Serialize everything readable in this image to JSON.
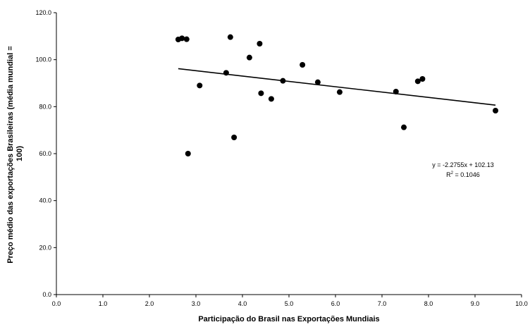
{
  "chart_data": {
    "type": "scatter",
    "title": "",
    "xlabel": "Participação do Brasil nas Exportações Mundiais",
    "ylabel_line1": "Preço médio das exportações Brasileiras (média mundial =",
    "ylabel_line2": "100)",
    "xlim": [
      0,
      10
    ],
    "ylim": [
      0,
      120
    ],
    "x_ticks": [
      "0.0",
      "1.0",
      "2.0",
      "3.0",
      "4.0",
      "5.0",
      "6.0",
      "7.0",
      "8.0",
      "9.0",
      "10.0"
    ],
    "y_ticks": [
      "0.0",
      "20.0",
      "40.0",
      "60.0",
      "80.0",
      "100.0",
      "120.0"
    ],
    "grid": false,
    "legend": "none",
    "marker_color": "#000000",
    "points": [
      {
        "x": 2.62,
        "y": 108.6
      },
      {
        "x": 2.7,
        "y": 109.1
      },
      {
        "x": 2.8,
        "y": 108.7
      },
      {
        "x": 2.83,
        "y": 60.0
      },
      {
        "x": 3.08,
        "y": 89.0
      },
      {
        "x": 3.65,
        "y": 94.4
      },
      {
        "x": 3.74,
        "y": 109.6
      },
      {
        "x": 3.82,
        "y": 66.9
      },
      {
        "x": 4.15,
        "y": 100.9
      },
      {
        "x": 4.37,
        "y": 106.8
      },
      {
        "x": 4.4,
        "y": 85.7
      },
      {
        "x": 4.62,
        "y": 83.3
      },
      {
        "x": 4.87,
        "y": 91.0
      },
      {
        "x": 5.29,
        "y": 97.8
      },
      {
        "x": 5.62,
        "y": 90.4
      },
      {
        "x": 6.09,
        "y": 86.2
      },
      {
        "x": 7.3,
        "y": 86.4
      },
      {
        "x": 7.47,
        "y": 71.2
      },
      {
        "x": 7.77,
        "y": 90.8
      },
      {
        "x": 7.87,
        "y": 91.8
      },
      {
        "x": 9.44,
        "y": 78.3
      }
    ],
    "trendline": {
      "type": "linear",
      "slope": -2.2755,
      "intercept": 102.13,
      "x_start": 2.62,
      "x_end": 9.44
    },
    "annotations": {
      "equation": "y = -2.2755x + 102.13",
      "r2_prefix": "R",
      "r2_sup": "2",
      "r2_suffix": " = 0.1046"
    }
  }
}
